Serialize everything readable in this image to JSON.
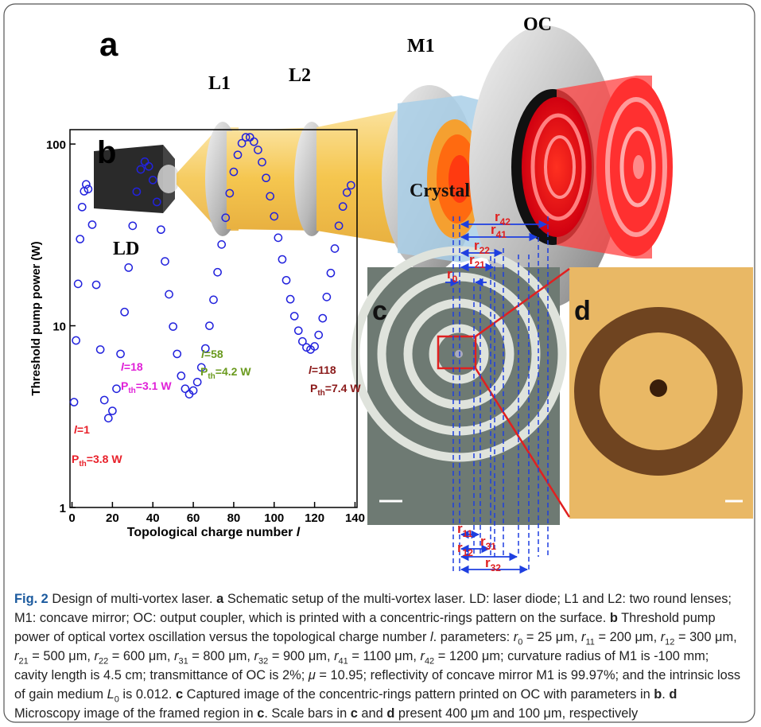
{
  "panel_a": {
    "label": "a",
    "parts": [
      "L1",
      "L2",
      "M1",
      "OC",
      "LD",
      "Crystal"
    ]
  },
  "panel_c": {
    "label": "c",
    "ring_labels_top": [
      {
        "base": "r",
        "sub": "42"
      },
      {
        "base": "r",
        "sub": "41"
      },
      {
        "base": "r",
        "sub": "22"
      },
      {
        "base": "r",
        "sub": "21"
      },
      {
        "base": "r",
        "sub": "0"
      }
    ],
    "ring_labels_bottom": [
      {
        "base": "r",
        "sub": "11"
      },
      {
        "base": "r",
        "sub": "12"
      },
      {
        "base": "r",
        "sub": "31"
      },
      {
        "base": "r",
        "sub": "32"
      }
    ]
  },
  "panel_d": {
    "label": "d"
  },
  "chart_data": {
    "type": "scatter",
    "panel_label": "b",
    "x_label": {
      "text": "Topological charge number ",
      "var": "l"
    },
    "y_label": "Threshold pump power (W)",
    "color": "#2222dd",
    "log_y": true,
    "x": [
      1,
      2,
      3,
      4,
      5,
      6,
      7,
      8,
      10,
      12,
      14,
      16,
      18,
      20,
      22,
      24,
      26,
      28,
      30,
      32,
      34,
      36,
      38,
      40,
      42,
      44,
      46,
      48,
      50,
      52,
      54,
      56,
      58,
      60,
      62,
      64,
      66,
      68,
      70,
      72,
      74,
      76,
      78,
      80,
      82,
      84,
      86,
      88,
      90,
      92,
      94,
      96,
      98,
      100,
      102,
      104,
      106,
      108,
      110,
      112,
      114,
      116,
      118,
      120,
      122,
      124,
      126,
      128,
      130,
      132,
      134,
      136,
      138
    ],
    "values": [
      3.8,
      8.3,
      17,
      30,
      45,
      55,
      60,
      56.5,
      36,
      16.8,
      7.4,
      3.9,
      3.1,
      3.4,
      4.5,
      7.0,
      11.9,
      20.9,
      35.5,
      54.7,
      72.5,
      80,
      75.3,
      63.4,
      48,
      33.8,
      22.6,
      14.9,
      9.9,
      7.0,
      5.3,
      4.5,
      4.2,
      4.4,
      4.9,
      5.9,
      7.5,
      10.0,
      13.9,
      19.7,
      28,
      39.3,
      53.6,
      70.3,
      87.2,
      101,
      109,
      109,
      103,
      92.8,
      79.5,
      65.1,
      51.6,
      40,
      30.5,
      23.2,
      17.8,
      14.0,
      11.3,
      9.4,
      8.2,
      7.6,
      7.4,
      7.7,
      8.9,
      11,
      14.4,
      19.5,
      26.6,
      35.5,
      45.3,
      54.1,
      59.3
    ],
    "xlim": [
      -1,
      141
    ],
    "xticks": [
      0,
      20,
      40,
      60,
      80,
      100,
      120,
      140
    ],
    "ylim": [
      1,
      120
    ],
    "yticks": [
      1,
      10,
      100
    ],
    "annotations": [
      {
        "var": "l",
        "eq": "=1",
        "p": "P",
        "sub": "th",
        "val": "=3.8 W",
        "color": "#e8202a"
      },
      {
        "var": "l",
        "eq": "=18",
        "p": "P",
        "sub": "th",
        "val": "=3.1 W",
        "color": "#e020d8"
      },
      {
        "var": "l",
        "eq": "=58",
        "p": "P",
        "sub": "th",
        "val": "=4.2 W",
        "color": "#6a9a1e"
      },
      {
        "var": "l",
        "eq": "=118",
        "p": "P",
        "sub": "th",
        "val": "=7.4 W",
        "color": "#8b1a1a"
      }
    ]
  },
  "caption": [
    [
      "Fig. 2",
      "fig"
    ],
    [
      " Design of multi-vortex laser. ",
      ""
    ],
    [
      "a",
      "b"
    ],
    [
      " Schematic setup of the multi-vortex laser. LD: laser diode; L1 and L2: two round lenses; M1: concave mirror; OC: output coupler, which is printed with a concentric-rings pattern on the surface. ",
      ""
    ],
    [
      "b",
      "b"
    ],
    [
      " Threshold pump power of optical vortex oscillation versus the topological charge number ",
      ""
    ],
    [
      "l",
      "i"
    ],
    [
      ". parameters: ",
      ""
    ],
    [
      "r",
      "i"
    ],
    [
      "0",
      "sub"
    ],
    [
      " = 25 μm, ",
      ""
    ],
    [
      "r",
      "i"
    ],
    [
      "11",
      "sub"
    ],
    [
      " = 200 μm, ",
      ""
    ],
    [
      "r",
      "i"
    ],
    [
      "12",
      "sub"
    ],
    [
      " = 300 μm, ",
      ""
    ],
    [
      "r",
      "i"
    ],
    [
      "21",
      "sub"
    ],
    [
      " = 500 μm, ",
      ""
    ],
    [
      "r",
      "i"
    ],
    [
      "22",
      "sub"
    ],
    [
      " = 600 μm, ",
      ""
    ],
    [
      "r",
      "i"
    ],
    [
      "31",
      "sub"
    ],
    [
      " = 800 μm, ",
      ""
    ],
    [
      "r",
      "i"
    ],
    [
      "32",
      "sub"
    ],
    [
      " = 900 μm, ",
      ""
    ],
    [
      "r",
      "i"
    ],
    [
      "41",
      "sub"
    ],
    [
      " = 1100 μm, ",
      ""
    ],
    [
      "r",
      "i"
    ],
    [
      "42",
      "sub"
    ],
    [
      " = 1200 μm; curvature radius of M1 is -100 mm; cavity length is 4.5 cm; transmittance of OC is 2%; ",
      ""
    ],
    [
      "μ",
      "i"
    ],
    [
      " = 10.95; reflectivity of concave mirror M1 is 99.97%; and the intrinsic loss of gain medium ",
      ""
    ],
    [
      "L",
      "i"
    ],
    [
      "0",
      "sub"
    ],
    [
      " is 0.012. ",
      ""
    ],
    [
      "c",
      "b"
    ],
    [
      " Captured image of the concentric-rings pattern printed on OC with parameters in ",
      ""
    ],
    [
      "b",
      "b"
    ],
    [
      ". ",
      ""
    ],
    [
      "d",
      "b"
    ],
    [
      " Microscopy image of the framed region in ",
      ""
    ],
    [
      "c",
      "b"
    ],
    [
      ". Scale bars in ",
      ""
    ],
    [
      "c",
      "b"
    ],
    [
      " and ",
      ""
    ],
    [
      "d",
      "b"
    ],
    [
      " present 400 μm and 100 μm, respectively",
      ""
    ]
  ]
}
